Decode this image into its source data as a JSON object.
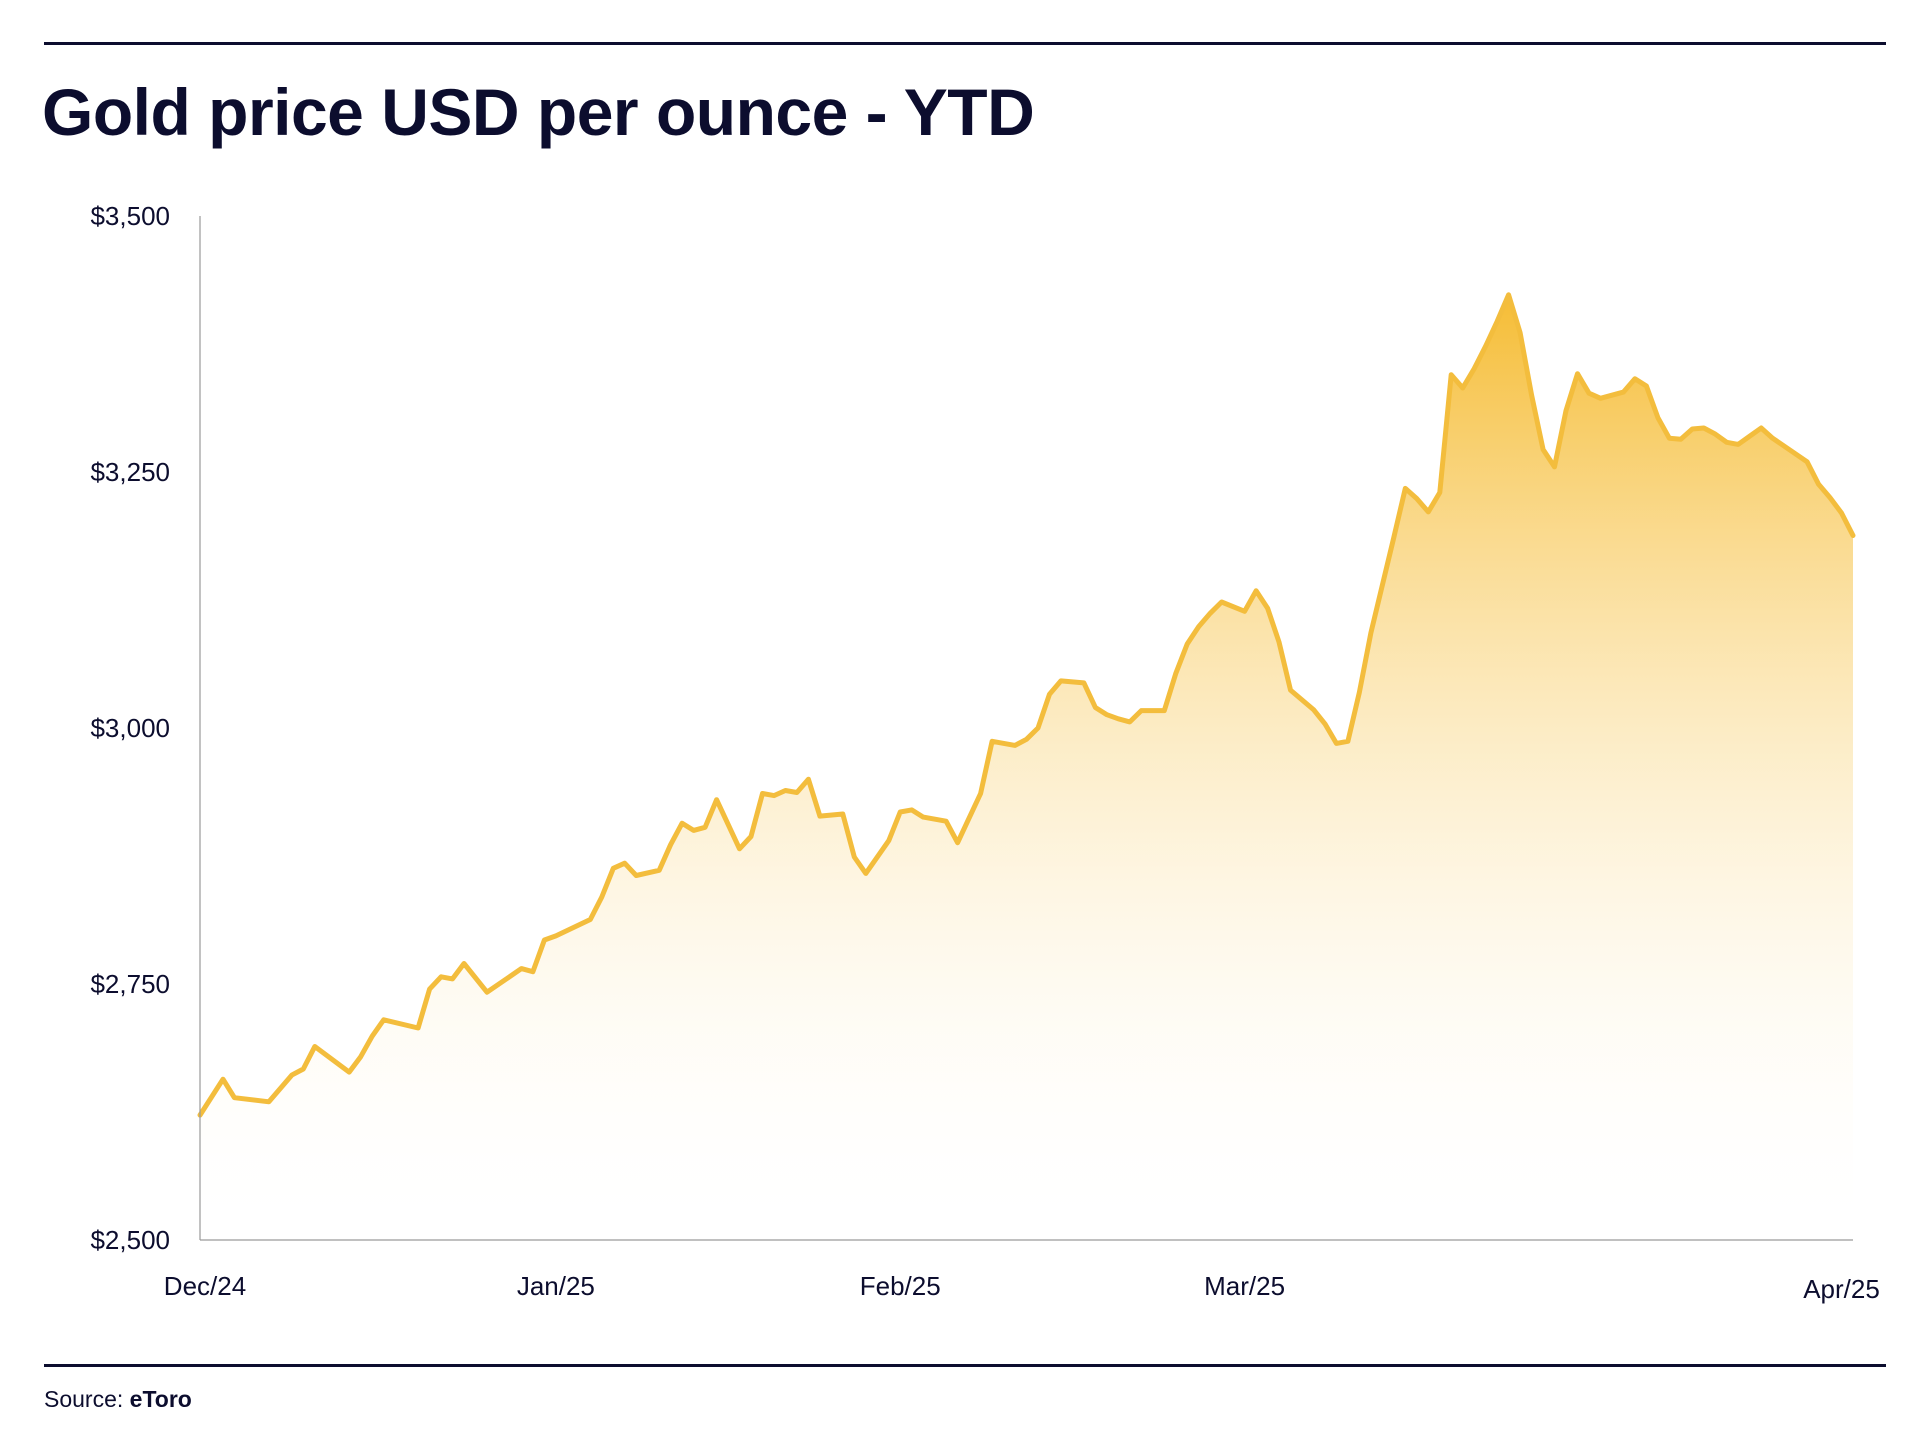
{
  "title": "Gold price USD per ounce - YTD",
  "source": {
    "label": "Source:",
    "name": "eToro"
  },
  "colors": {
    "text": "#0c0d2e",
    "line": "#f3bd3d",
    "fill_top": "#f5b92a",
    "axis": "#9a9a9a"
  },
  "chart_data": {
    "type": "area",
    "title": "Gold price USD per ounce - YTD",
    "xlabel": "",
    "ylabel": "",
    "grid": false,
    "legend": "none",
    "ylim": [
      2500,
      3500
    ],
    "xlim": [
      "2024-12-02",
      "2025-04-25"
    ],
    "yticks": [
      2500,
      2750,
      3000,
      3250,
      3500
    ],
    "ytick_labels": [
      "$2,500",
      "$2,750",
      "$3,000",
      "$3,250",
      "$3,500"
    ],
    "xticks": [
      "2024-12-02",
      "2025-01-02",
      "2025-02-01",
      "2025-03-03",
      "2025-04-24"
    ],
    "xtick_labels": [
      "Dec/24",
      "Jan/25",
      "Feb/25",
      "Mar/25",
      "Apr/25"
    ],
    "series": [
      {
        "x": [
          "2024-12-02",
          "2024-12-04",
          "2024-12-05",
          "2024-12-08",
          "2024-12-10",
          "2024-12-11",
          "2024-12-12",
          "2024-12-15",
          "2024-12-16",
          "2024-12-17",
          "2024-12-18",
          "2024-12-21",
          "2024-12-22",
          "2024-12-23",
          "2024-12-24",
          "2024-12-25",
          "2024-12-27",
          "2024-12-30",
          "2024-12-31",
          "2025-01-01",
          "2025-01-02",
          "2025-01-05",
          "2025-01-06",
          "2025-01-07",
          "2025-01-08",
          "2025-01-09",
          "2025-01-11",
          "2025-01-12",
          "2025-01-13",
          "2025-01-14",
          "2025-01-15",
          "2025-01-16",
          "2025-01-18",
          "2025-01-19",
          "2025-01-20",
          "2025-01-21",
          "2025-01-22",
          "2025-01-23",
          "2025-01-24",
          "2025-01-25",
          "2025-01-27",
          "2025-01-28",
          "2025-01-29",
          "2025-01-31",
          "2025-02-01",
          "2025-02-02",
          "2025-02-03",
          "2025-02-05",
          "2025-02-06",
          "2025-02-07",
          "2025-02-08",
          "2025-02-09",
          "2025-02-11",
          "2025-02-12",
          "2025-02-13",
          "2025-02-14",
          "2025-02-15",
          "2025-02-17",
          "2025-02-18",
          "2025-02-19",
          "2025-02-20",
          "2025-02-21",
          "2025-02-22",
          "2025-02-24",
          "2025-02-25",
          "2025-02-26",
          "2025-02-27",
          "2025-02-28",
          "2025-03-01",
          "2025-03-03",
          "2025-03-04",
          "2025-03-05",
          "2025-03-06",
          "2025-03-07",
          "2025-03-09",
          "2025-03-10",
          "2025-03-11",
          "2025-03-12",
          "2025-03-13",
          "2025-03-14",
          "2025-03-16",
          "2025-03-17",
          "2025-03-18",
          "2025-03-19",
          "2025-03-20",
          "2025-03-21",
          "2025-03-22",
          "2025-03-23",
          "2025-03-24",
          "2025-03-25",
          "2025-03-26",
          "2025-03-27",
          "2025-03-28",
          "2025-03-29",
          "2025-03-30",
          "2025-03-31",
          "2025-04-01",
          "2025-04-02",
          "2025-04-03",
          "2025-04-05",
          "2025-04-06",
          "2025-04-07",
          "2025-04-08",
          "2025-04-09",
          "2025-04-10",
          "2025-04-11",
          "2025-04-12",
          "2025-04-13",
          "2025-04-14",
          "2025-04-15",
          "2025-04-16",
          "2025-04-17",
          "2025-04-18",
          "2025-04-21",
          "2025-04-22",
          "2025-04-23",
          "2025-04-24",
          "2025-04-25"
        ],
        "values": [
          2622,
          2657,
          2639,
          2635,
          2661,
          2667,
          2689,
          2664,
          2679,
          2699,
          2715,
          2707,
          2745,
          2757,
          2755,
          2770,
          2742,
          2765,
          2762,
          2793,
          2797,
          2813,
          2835,
          2863,
          2868,
          2856,
          2861,
          2886,
          2907,
          2900,
          2903,
          2930,
          2882,
          2894,
          2936,
          2934,
          2939,
          2937,
          2950,
          2914,
          2916,
          2874,
          2858,
          2890,
          2918,
          2920,
          2913,
          2909,
          2888,
          2912,
          2936,
          2987,
          2983,
          2989,
          3000,
          3033,
          3046,
          3044,
          3020,
          3013,
          3009,
          3006,
          3017,
          3017,
          3053,
          3082,
          3099,
          3112,
          3123,
          3114,
          3134,
          3117,
          3084,
          3037,
          3018,
          3004,
          2985,
          2987,
          3035,
          3093,
          3186,
          3234,
          3224,
          3211,
          3230,
          3345,
          3332,
          3351,
          3373,
          3397,
          3423,
          3386,
          3325,
          3272,
          3255,
          3310,
          3346,
          3327,
          3322,
          3328,
          3341,
          3334,
          3303,
          3283,
          3282,
          3292,
          3293,
          3287,
          3279,
          3277,
          3285,
          3293,
          3283,
          3260,
          3238,
          3225,
          3210,
          3188
        ]
      }
    ]
  }
}
